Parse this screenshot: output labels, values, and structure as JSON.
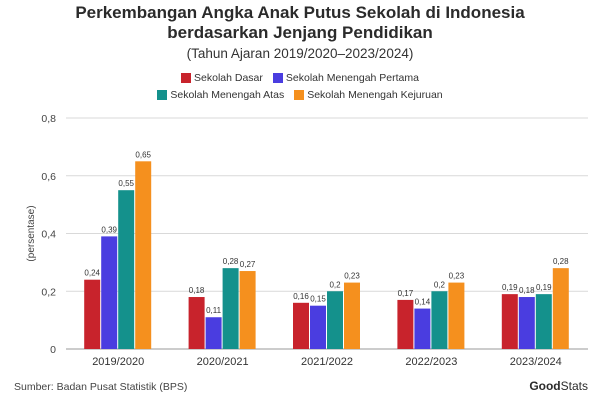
{
  "chart_data": {
    "type": "bar",
    "title_line1": "Perkembangan Angka Anak Putus Sekolah di Indonesia",
    "title_line2": "berdasarkan Jenjang Pendidikan",
    "subtitle": "(Tahun Ajaran 2019/2020–2023/2024)",
    "ylabel": "(persentase)",
    "ylim": [
      0,
      0.8
    ],
    "yticks": [
      "0",
      "0,2",
      "0,4",
      "0,6",
      "0,8"
    ],
    "ytick_values": [
      0,
      0.2,
      0.4,
      0.6,
      0.8
    ],
    "categories": [
      "2019/2020",
      "2020/2021",
      "2021/2022",
      "2022/2023",
      "2023/2024"
    ],
    "series": [
      {
        "name": "Sekolah Dasar",
        "color": "#c8232c",
        "values": [
          0.24,
          0.18,
          0.16,
          0.17,
          0.19
        ],
        "labels": [
          "0,24",
          "0,18",
          "0,16",
          "0,17",
          "0,19"
        ]
      },
      {
        "name": "Sekolah Menengah Pertama",
        "color": "#4a3de0",
        "values": [
          0.39,
          0.11,
          0.15,
          0.14,
          0.18
        ],
        "labels": [
          "0,39",
          "0,11",
          "0,15",
          "0,14",
          "0,18"
        ]
      },
      {
        "name": "Sekolah Menengah Atas",
        "color": "#14918c",
        "values": [
          0.55,
          0.28,
          0.2,
          0.2,
          0.19
        ],
        "labels": [
          "0,55",
          "0,28",
          "0,2",
          "0,2",
          "0,19"
        ]
      },
      {
        "name": "Sekolah Menengah Kejuruan",
        "color": "#f5901e",
        "values": [
          0.65,
          0.27,
          0.23,
          0.23,
          0.28
        ],
        "labels": [
          "0,65",
          "0,27",
          "0,23",
          "0,23",
          "0,28"
        ]
      }
    ],
    "grid": "horizontal",
    "legend": "top-center"
  },
  "footer": {
    "source": "Sumber: Badan Pusat Statistik (BPS)",
    "brand_bold": "Good",
    "brand_rest": "Stats"
  }
}
